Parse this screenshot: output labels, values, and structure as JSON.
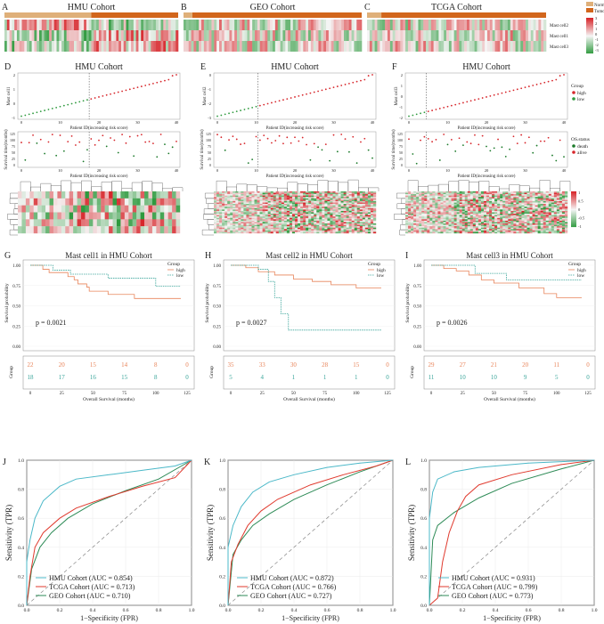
{
  "colors": {
    "normal": "#dfb07a",
    "tumor": "#d2661c",
    "hi": "#d7262b",
    "lo": "#2e9a3e",
    "high": "#e8845a",
    "low": "#3aa59a",
    "hmu": "#4bb8c8",
    "tcga": "#e03a2e",
    "geo": "#2e8b57",
    "death": "#1b7a2a",
    "alive": "#d7262b"
  },
  "chart_data": [
    {
      "panel": "A",
      "type": "heatmap",
      "title": "HMU Cohort",
      "rows": [
        "Mast cell2",
        "Mast cell1",
        "Mast cell3"
      ],
      "normal_fraction": 0.5
    },
    {
      "panel": "B",
      "type": "heatmap",
      "title": "GEO Cohort",
      "rows": [
        "Mast cell2",
        "Mast cell1",
        "Mast cell3"
      ],
      "normal_fraction": 0.05
    },
    {
      "panel": "C",
      "type": "heatmap",
      "title": "TCGA Cohort",
      "rows": [
        "Mast cell2",
        "Mast cell1",
        "Mast cell3"
      ],
      "normal_fraction": 0.08,
      "legend": {
        "groups": [
          "Normal",
          "Tumor"
        ],
        "scale": [
          "3",
          "2",
          "1",
          "0",
          "-1",
          "-2",
          "-3"
        ]
      }
    },
    {
      "panel": "D",
      "type": "scatter",
      "title": "HMU Cohort",
      "ylabel": "Mast cell1",
      "xlabel": "Patient ID(increasing risk score)",
      "yticks": [
        "-1",
        "0",
        "1",
        "2"
      ],
      "ylim": [
        -1,
        2
      ],
      "xticks": [
        0,
        10,
        20,
        30,
        40
      ],
      "n": 41,
      "cutoff": 18,
      "surv_ylabel": "Survival time(months)",
      "surv_yticks": [
        "125",
        "100",
        "75",
        "50",
        "25",
        "0"
      ]
    },
    {
      "panel": "E",
      "type": "scatter",
      "title": "HMU Cohort",
      "ylabel": "Mast cell2",
      "xlabel": "Patient ID(increasing risk score)",
      "yticks": [
        "0",
        "-1",
        "-2",
        "-3"
      ],
      "ylim": [
        -3,
        0
      ],
      "xticks": [
        0,
        10,
        20,
        30,
        40
      ],
      "n": 41,
      "cutoff": 11,
      "surv_ylabel": "Survival time(months)",
      "surv_yticks": [
        "125",
        "100",
        "75",
        "50",
        "25",
        "0"
      ]
    },
    {
      "panel": "F",
      "type": "scatter",
      "title": "HMU Cohort",
      "ylabel": "Mast cell3",
      "xlabel": "Patient ID(increasing risk score)",
      "yticks": [
        "2",
        "1",
        "0",
        "-1",
        "-2"
      ],
      "ylim": [
        -2,
        2
      ],
      "xticks": [
        0,
        10,
        20,
        30,
        40
      ],
      "n": 41,
      "cutoff": 5,
      "surv_ylabel": "Survival time(months)",
      "surv_yticks": [
        "125",
        "100",
        "75",
        "50",
        "25",
        "0"
      ],
      "group_legend": {
        "title": "Group",
        "items": [
          "high",
          "low"
        ]
      },
      "status_legend": {
        "title": "OS.status",
        "items": [
          "death",
          "alive"
        ]
      },
      "heat_legend": [
        "1",
        "0.5",
        "0",
        "-0.5",
        "-1"
      ]
    },
    {
      "panel": "G",
      "type": "line",
      "title": "Mast cell1 in HMU Cohort",
      "pvalue": "p = 0.0021",
      "ylabel": "Survival probability",
      "xlabel": "Overall Survival (months)",
      "yticks": [
        "0.00",
        "0.25",
        "0.50",
        "0.75",
        "1.00"
      ],
      "xticks": [
        "0",
        "25",
        "50",
        "75",
        "100",
        "125"
      ],
      "legend_title": "Group",
      "series": [
        {
          "name": "high",
          "points": [
            [
              0,
              1
            ],
            [
              10,
              0.95
            ],
            [
              15,
              0.91
            ],
            [
              30,
              0.86
            ],
            [
              35,
              0.82
            ],
            [
              38,
              0.77
            ],
            [
              45,
              0.73
            ],
            [
              47,
              0.68
            ],
            [
              62,
              0.64
            ],
            [
              83,
              0.59
            ],
            [
              120,
              0.59
            ]
          ],
          "at_risk": [
            "22",
            "20",
            "15",
            "14",
            "8",
            "0"
          ]
        },
        {
          "name": "low",
          "points": [
            [
              0,
              1
            ],
            [
              18,
              0.94
            ],
            [
              32,
              0.89
            ],
            [
              62,
              0.84
            ],
            [
              100,
              0.74
            ],
            [
              120,
              0.74
            ]
          ],
          "at_risk": [
            "18",
            "17",
            "16",
            "15",
            "8",
            "0"
          ]
        }
      ],
      "table_ylabel": "Group"
    },
    {
      "panel": "H",
      "type": "line",
      "title": "Mast cell2 in HMU Cohort",
      "pvalue": "p = 0.0027",
      "ylabel": "Survival probability",
      "xlabel": "Overall Survival (months)",
      "yticks": [
        "0.00",
        "0.25",
        "0.50",
        "0.75",
        "1.00"
      ],
      "xticks": [
        "0",
        "25",
        "50",
        "75",
        "100",
        "125"
      ],
      "legend_title": "Group",
      "series": [
        {
          "name": "high",
          "points": [
            [
              0,
              1
            ],
            [
              12,
              0.97
            ],
            [
              22,
              0.92
            ],
            [
              35,
              0.88
            ],
            [
              50,
              0.83
            ],
            [
              65,
              0.8
            ],
            [
              80,
              0.76
            ],
            [
              100,
              0.72
            ],
            [
              120,
              0.72
            ]
          ],
          "at_risk": [
            "35",
            "33",
            "30",
            "28",
            "15",
            "0"
          ]
        },
        {
          "name": "low",
          "points": [
            [
              0,
              1
            ],
            [
              22,
              0.95
            ],
            [
              30,
              0.8
            ],
            [
              35,
              0.6
            ],
            [
              40,
              0.4
            ],
            [
              46,
              0.2
            ],
            [
              120,
              0.2
            ]
          ],
          "at_risk": [
            "5",
            "4",
            "1",
            "1",
            "1",
            "0"
          ]
        }
      ],
      "table_ylabel": "Group"
    },
    {
      "panel": "I",
      "type": "line",
      "title": "Mast cell3 in HMU Cohort",
      "pvalue": "p = 0.0026",
      "ylabel": "Survival probability",
      "xlabel": "Overall Survival (months)",
      "yticks": [
        "0.00",
        "0.25",
        "0.50",
        "0.75",
        "1.00"
      ],
      "xticks": [
        "0",
        "25",
        "50",
        "75",
        "100",
        "125"
      ],
      "legend_title": "Group",
      "series": [
        {
          "name": "high",
          "points": [
            [
              0,
              1
            ],
            [
              10,
              0.96
            ],
            [
              20,
              0.93
            ],
            [
              30,
              0.88
            ],
            [
              40,
              0.82
            ],
            [
              50,
              0.78
            ],
            [
              70,
              0.72
            ],
            [
              90,
              0.65
            ],
            [
              100,
              0.6
            ],
            [
              120,
              0.6
            ]
          ],
          "at_risk": [
            "29",
            "27",
            "21",
            "20",
            "11",
            "0"
          ]
        },
        {
          "name": "low",
          "points": [
            [
              0,
              1
            ],
            [
              35,
              0.9
            ],
            [
              60,
              0.82
            ],
            [
              120,
              0.82
            ]
          ],
          "at_risk": [
            "11",
            "10",
            "10",
            "9",
            "5",
            "0"
          ]
        }
      ],
      "table_ylabel": "Group"
    },
    {
      "panel": "J",
      "type": "line",
      "ylabel": "Sensitivity (TPR)",
      "xlabel": "1−Specificity (FPR)",
      "ticks": [
        "0.0",
        "0.2",
        "0.4",
        "0.6",
        "0.8",
        "1.0"
      ],
      "series": [
        {
          "name": "HMU Cohort (AUC = 0.854)",
          "key": "hmu",
          "points": [
            [
              0,
              0
            ],
            [
              0,
              0.3
            ],
            [
              0.02,
              0.45
            ],
            [
              0.05,
              0.6
            ],
            [
              0.1,
              0.72
            ],
            [
              0.2,
              0.82
            ],
            [
              0.3,
              0.87
            ],
            [
              0.5,
              0.9
            ],
            [
              0.7,
              0.93
            ],
            [
              0.9,
              0.96
            ],
            [
              1,
              1
            ]
          ]
        },
        {
          "name": "TCGA Cohort (AUC = 0.713)",
          "key": "tcga",
          "points": [
            [
              0,
              0
            ],
            [
              0.02,
              0.2
            ],
            [
              0.05,
              0.4
            ],
            [
              0.1,
              0.5
            ],
            [
              0.2,
              0.6
            ],
            [
              0.3,
              0.67
            ],
            [
              0.5,
              0.75
            ],
            [
              0.7,
              0.82
            ],
            [
              0.9,
              0.88
            ],
            [
              1,
              1
            ]
          ]
        },
        {
          "name": "GEO Cohort (AUC = 0.710)",
          "key": "geo",
          "points": [
            [
              0,
              0
            ],
            [
              0.03,
              0.25
            ],
            [
              0.08,
              0.4
            ],
            [
              0.15,
              0.5
            ],
            [
              0.25,
              0.6
            ],
            [
              0.4,
              0.7
            ],
            [
              0.6,
              0.79
            ],
            [
              0.8,
              0.87
            ],
            [
              1,
              1
            ]
          ]
        }
      ]
    },
    {
      "panel": "K",
      "type": "line",
      "ylabel": "Sensitivity (TPR)",
      "xlabel": "1−Specificity (FPR)",
      "ticks": [
        "0.0",
        "0.2",
        "0.4",
        "0.6",
        "0.8",
        "1.0"
      ],
      "series": [
        {
          "name": "HMU Cohort (AUC = 0.872)",
          "key": "hmu",
          "points": [
            [
              0,
              0
            ],
            [
              0,
              0.4
            ],
            [
              0.03,
              0.55
            ],
            [
              0.08,
              0.68
            ],
            [
              0.15,
              0.78
            ],
            [
              0.25,
              0.85
            ],
            [
              0.4,
              0.9
            ],
            [
              0.6,
              0.95
            ],
            [
              0.8,
              0.98
            ],
            [
              1,
              1
            ]
          ]
        },
        {
          "name": "TCGA Cohort (AUC = 0.766)",
          "key": "tcga",
          "points": [
            [
              0,
              0
            ],
            [
              0.02,
              0.3
            ],
            [
              0.06,
              0.42
            ],
            [
              0.12,
              0.55
            ],
            [
              0.2,
              0.65
            ],
            [
              0.3,
              0.73
            ],
            [
              0.5,
              0.83
            ],
            [
              0.7,
              0.9
            ],
            [
              0.9,
              0.96
            ],
            [
              1,
              1
            ]
          ]
        },
        {
          "name": "GEO Cohort (AUC = 0.727)",
          "key": "geo",
          "points": [
            [
              0,
              0
            ],
            [
              0.03,
              0.35
            ],
            [
              0.08,
              0.45
            ],
            [
              0.15,
              0.55
            ],
            [
              0.25,
              0.63
            ],
            [
              0.4,
              0.73
            ],
            [
              0.6,
              0.83
            ],
            [
              0.8,
              0.92
            ],
            [
              1,
              1
            ]
          ]
        }
      ]
    },
    {
      "panel": "L",
      "type": "line",
      "ylabel": "Sensitivity (TPR)",
      "xlabel": "1−Specificity (FPR)",
      "ticks": [
        "0.0",
        "0.2",
        "0.4",
        "0.6",
        "0.8",
        "1.0"
      ],
      "series": [
        {
          "name": "HMU Cohort (AUC = 0.931)",
          "key": "hmu",
          "points": [
            [
              0,
              0
            ],
            [
              0,
              0.6
            ],
            [
              0.02,
              0.78
            ],
            [
              0.05,
              0.87
            ],
            [
              0.15,
              0.92
            ],
            [
              0.3,
              0.95
            ],
            [
              0.6,
              0.98
            ],
            [
              1,
              1
            ]
          ]
        },
        {
          "name": "TCGA Cohort (AUC = 0.799)",
          "key": "tcga",
          "points": [
            [
              0,
              0
            ],
            [
              0.05,
              0.05
            ],
            [
              0.08,
              0.3
            ],
            [
              0.12,
              0.5
            ],
            [
              0.17,
              0.65
            ],
            [
              0.22,
              0.75
            ],
            [
              0.3,
              0.83
            ],
            [
              0.5,
              0.9
            ],
            [
              0.8,
              0.97
            ],
            [
              1,
              1
            ]
          ]
        },
        {
          "name": "GEO Cohort (AUC = 0.773)",
          "key": "geo",
          "points": [
            [
              0,
              0
            ],
            [
              0.02,
              0.45
            ],
            [
              0.05,
              0.55
            ],
            [
              0.15,
              0.64
            ],
            [
              0.3,
              0.74
            ],
            [
              0.5,
              0.84
            ],
            [
              0.8,
              0.94
            ],
            [
              1,
              1
            ]
          ]
        }
      ]
    }
  ]
}
